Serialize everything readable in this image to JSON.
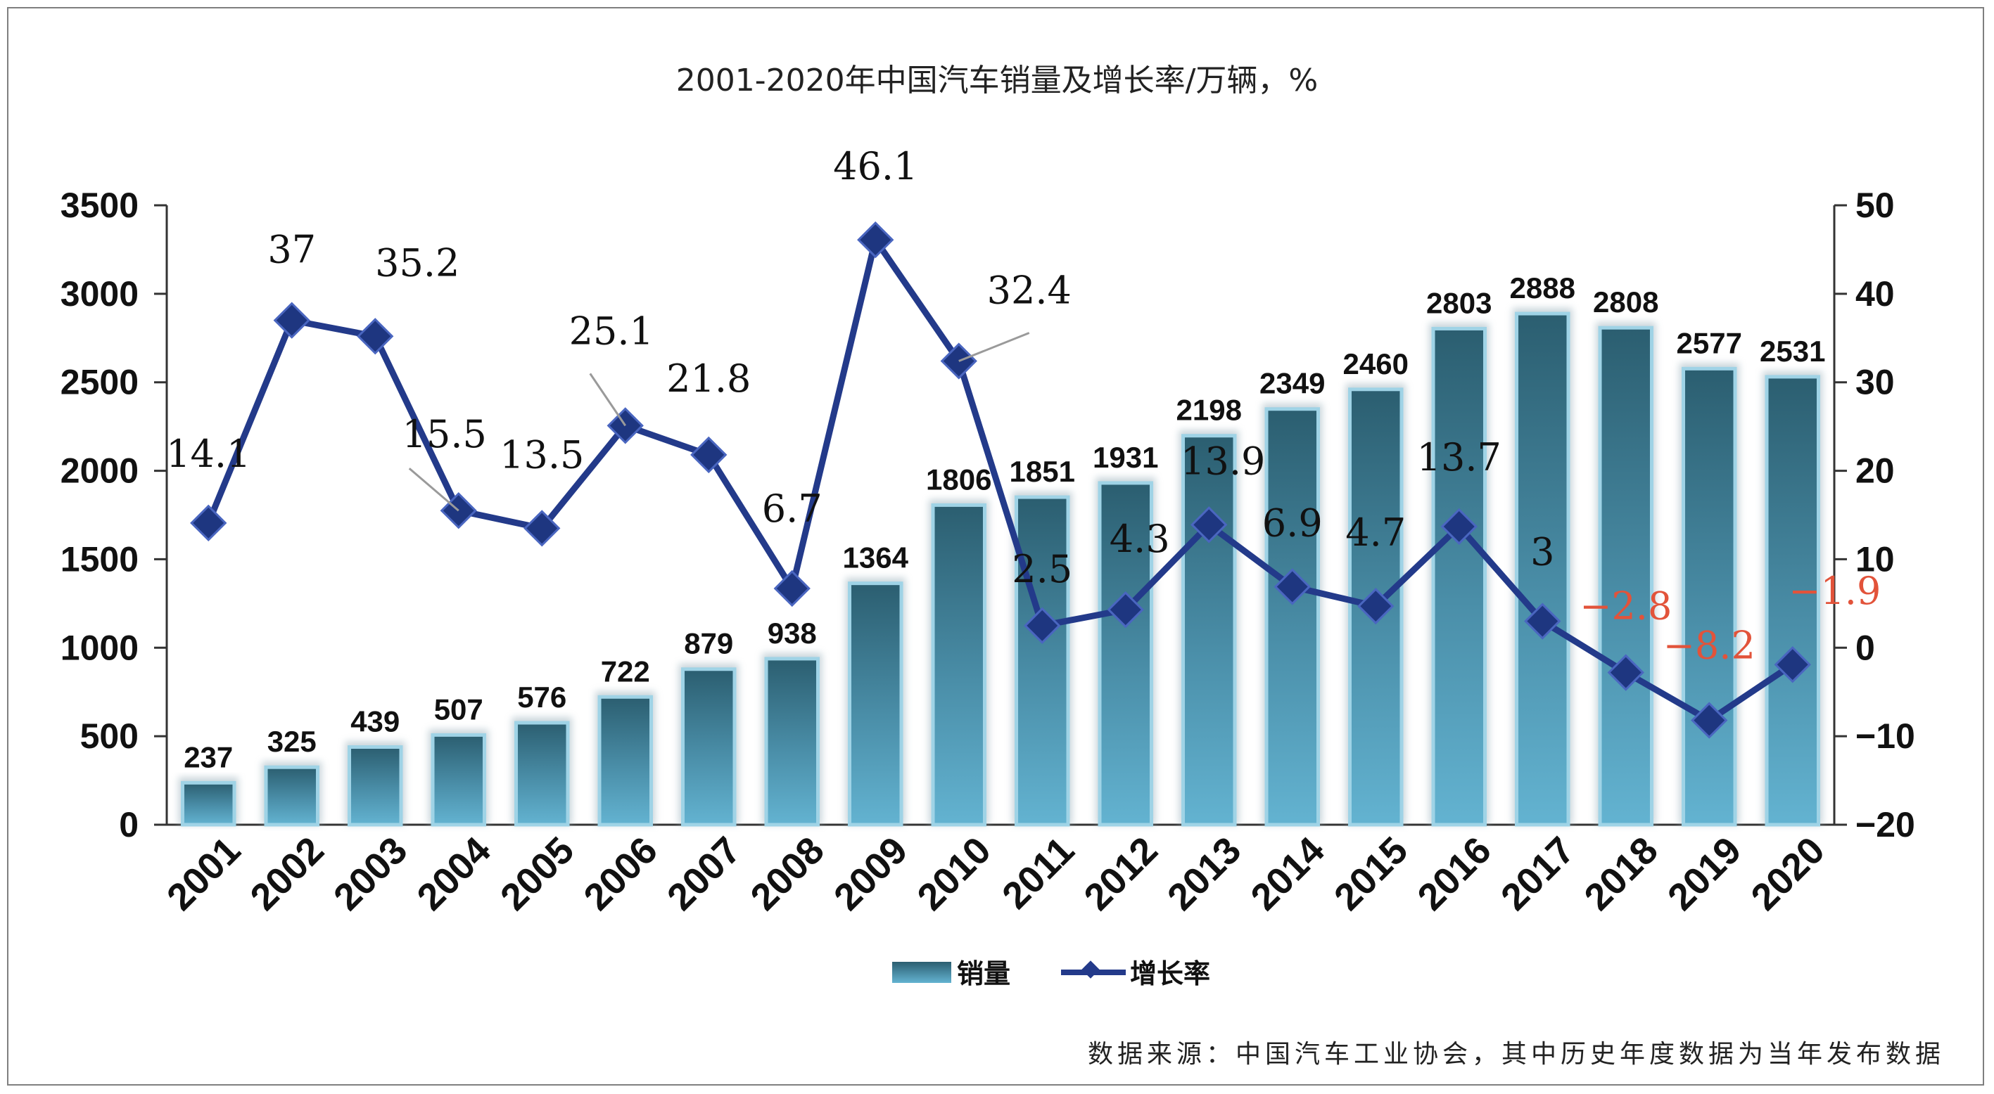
{
  "chart_data": {
    "type": "bar",
    "title": "2001-2020年中国汽车销量及增长率/万辆，%",
    "categories": [
      "2001",
      "2002",
      "2003",
      "2004",
      "2005",
      "2006",
      "2007",
      "2008",
      "2009",
      "2010",
      "2011",
      "2012",
      "2013",
      "2014",
      "2015",
      "2016",
      "2017",
      "2018",
      "2019",
      "2020"
    ],
    "series": [
      {
        "name": "销量",
        "type": "bar",
        "axis": "left",
        "values": [
          237,
          325,
          439,
          507,
          576,
          722,
          879,
          938,
          1364,
          1806,
          1851,
          1931,
          2198,
          2349,
          2460,
          2803,
          2888,
          2808,
          2577,
          2531
        ]
      },
      {
        "name": "增长率",
        "type": "line",
        "axis": "right",
        "values": [
          14.1,
          37,
          35.2,
          15.5,
          13.5,
          25.1,
          21.8,
          6.7,
          46.1,
          32.4,
          2.5,
          4.3,
          13.9,
          6.9,
          4.7,
          13.7,
          3,
          -2.8,
          -8.2,
          -1.9
        ]
      }
    ],
    "line_labels": [
      "14.1",
      "37",
      "35.2",
      "15.5",
      "13.5",
      "25.1",
      "21.8",
      "6.7",
      "46.1",
      "32.4",
      "2.5",
      "4.3",
      "13.9",
      "6.9",
      "4.7",
      "13.7",
      "3",
      "−2.8",
      "−8.2",
      "−1.9"
    ],
    "y_left": {
      "lim": [
        0,
        3500
      ],
      "ticks": [
        "0",
        "500",
        "1000",
        "1500",
        "2000",
        "2500",
        "3000",
        "3500"
      ]
    },
    "y_right": {
      "lim": [
        -20,
        50
      ],
      "ticks": [
        "−20",
        "−10",
        "0",
        "10",
        "20",
        "30",
        "40",
        "50"
      ]
    },
    "legend_position": "bottom",
    "grid": false,
    "colors": {
      "bar": "#5aa7c6",
      "bar_dark": "#2b5e70",
      "line": "#233a8a",
      "negative_label": "#e2533a"
    },
    "source": "数据来源：中国汽车工业协会，其中历史年度数据为当年发布数据"
  }
}
